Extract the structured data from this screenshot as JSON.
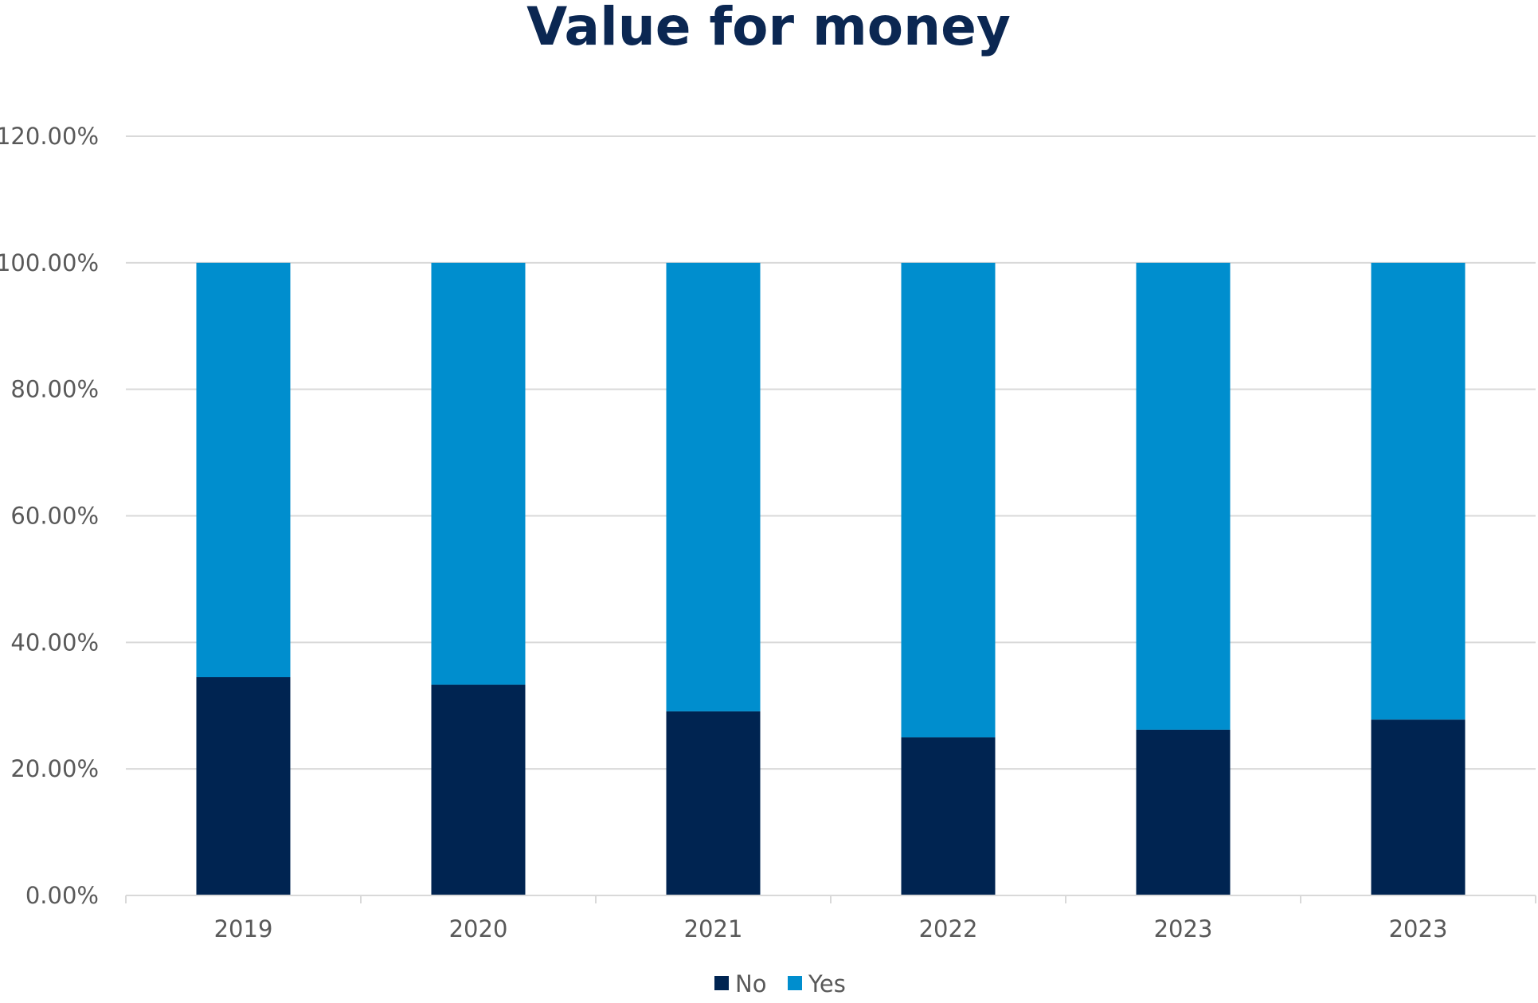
{
  "chart_data": {
    "type": "bar",
    "stacked": true,
    "title": "Value for money",
    "categories": [
      "2019",
      "2020",
      "2021",
      "2022",
      "2023",
      "2023"
    ],
    "series": [
      {
        "name": "No",
        "color": "#002451",
        "values": [
          34.5,
          33.3,
          29.1,
          25.0,
          26.2,
          27.8
        ]
      },
      {
        "name": "Yes",
        "color": "#008ECE",
        "values": [
          65.5,
          66.7,
          70.9,
          75.0,
          73.8,
          72.2
        ]
      }
    ],
    "ylim": [
      0,
      120
    ],
    "yticks": [
      0,
      20,
      40,
      60,
      80,
      100,
      120
    ],
    "ytick_labels": [
      "0.00%",
      "20.00%",
      "40.00%",
      "60.00%",
      "80.00%",
      "100.00%",
      "120.00%"
    ],
    "xlabel": "",
    "ylabel": "",
    "grid": true,
    "legend": "bottom-center"
  },
  "colors": {
    "title": "#0B2752",
    "axis_text": "#595959",
    "grid": "#D9D9D9"
  }
}
